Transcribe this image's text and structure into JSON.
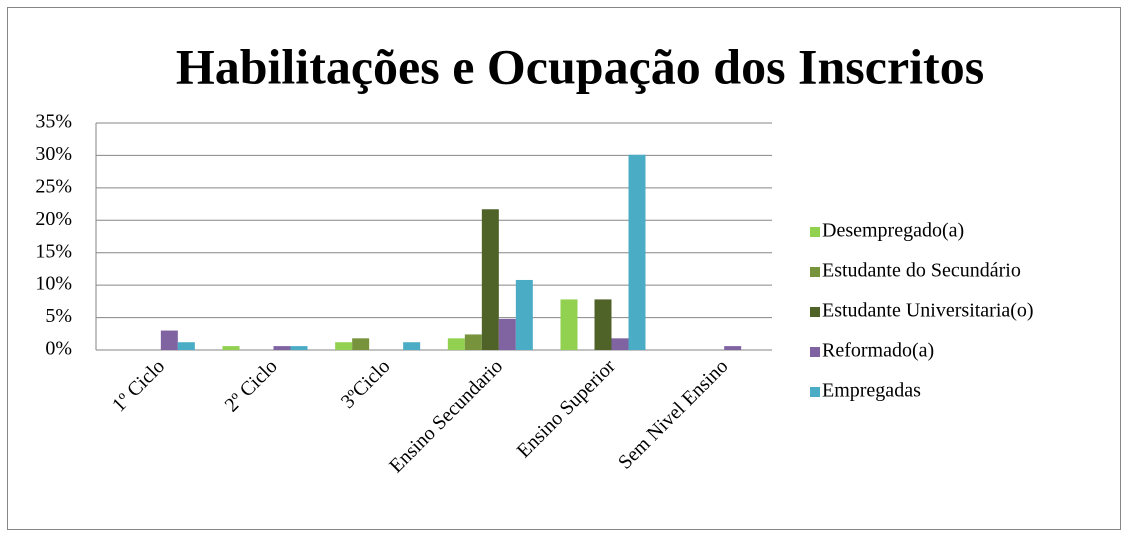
{
  "chart_data": {
    "type": "bar",
    "title": "Habilitações e Ocupação dos Inscritos",
    "categories": [
      "1º Ciclo",
      "2º Ciclo",
      "3ºCiclo",
      "Ensino Secundario",
      "Ensino Superior",
      "Sem Nivel  Ensino"
    ],
    "series": [
      {
        "name": "Desempregado(a)",
        "color": "#92d050",
        "values": [
          0,
          0.6,
          1.2,
          1.8,
          7.8,
          0
        ]
      },
      {
        "name": "Estudante do Secundário",
        "color": "#77933c",
        "values": [
          0,
          0,
          1.8,
          2.4,
          0,
          0
        ]
      },
      {
        "name": "Estudante Universitaria(o)",
        "color": "#4f6228",
        "values": [
          0,
          0,
          0,
          21.7,
          7.8,
          0
        ]
      },
      {
        "name": "Reformado(a)",
        "color": "#8064a2",
        "values": [
          3,
          0.6,
          0,
          4.8,
          1.8,
          0.6
        ]
      },
      {
        "name": "Empregadas",
        "color": "#4bacc6",
        "values": [
          1.2,
          0.6,
          1.2,
          10.8,
          30.1,
          0
        ]
      }
    ],
    "ylim": [
      0,
      35
    ],
    "yticks": [
      {
        "value": 0,
        "label": "0%"
      },
      {
        "value": 5,
        "label": "5%"
      },
      {
        "value": 10,
        "label": "10%"
      },
      {
        "value": 15,
        "label": "15%"
      },
      {
        "value": 20,
        "label": "20%"
      },
      {
        "value": 25,
        "label": "25%"
      },
      {
        "value": 30,
        "label": "30%"
      },
      {
        "value": 35,
        "label": "35%"
      }
    ],
    "grid": true,
    "legend": "right"
  }
}
